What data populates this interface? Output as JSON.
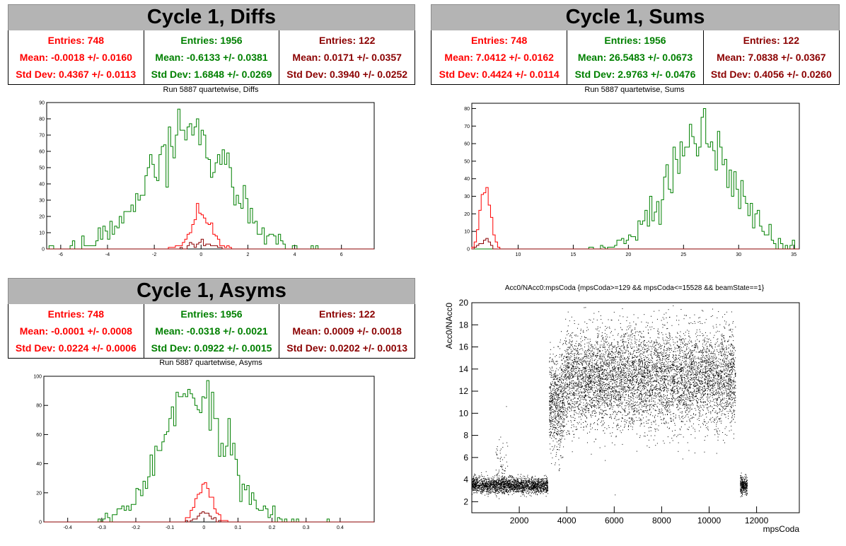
{
  "colors": {
    "s0": "#ff0000",
    "s1": "#008000",
    "s2": "#8b0000"
  },
  "panels": {
    "diffs": {
      "title": "Cycle 1, Diffs",
      "stats": [
        {
          "entries": "Entries: 748",
          "mean": "Mean: -0.0018 +/- 0.0160",
          "std": "Std Dev: 0.4367 +/- 0.0113"
        },
        {
          "entries": "Entries: 1956",
          "mean": "Mean: -0.6133 +/- 0.0381",
          "std": "Std Dev: 1.6848 +/- 0.0269"
        },
        {
          "entries": "Entries: 122",
          "mean": "Mean: 0.0171 +/- 0.0357",
          "std": "Std Dev: 0.3940 +/- 0.0252"
        }
      ],
      "run_title": "Run 5887 quartetwise, Diffs"
    },
    "sums": {
      "title": "Cycle 1, Sums",
      "stats": [
        {
          "entries": "Entries: 748",
          "mean": "Mean: 7.0412 +/- 0.0162",
          "std": "Std Dev: 0.4424 +/- 0.0114"
        },
        {
          "entries": "Entries: 1956",
          "mean": "Mean: 26.5483 +/- 0.0673",
          "std": "Std Dev: 2.9763 +/- 0.0476"
        },
        {
          "entries": "Entries: 122",
          "mean": "Mean: 7.0838 +/- 0.0367",
          "std": "Std Dev: 0.4056 +/- 0.0260"
        }
      ],
      "run_title": "Run 5887 quartetwise, Sums"
    },
    "asyms": {
      "title": "Cycle 1, Asyms",
      "stats": [
        {
          "entries": "Entries: 748",
          "mean": "Mean: -0.0001 +/- 0.0008",
          "std": "Std Dev: 0.0224 +/- 0.0006"
        },
        {
          "entries": "Entries: 1956",
          "mean": "Mean: -0.0318 +/- 0.0021",
          "std": "Std Dev: 0.0922 +/- 0.0015"
        },
        {
          "entries": "Entries: 122",
          "mean": "Mean: 0.0009 +/- 0.0018",
          "std": "Std Dev: 0.0202 +/- 0.0013"
        }
      ],
      "run_title": "Run 5887 quartetwise, Asyms"
    },
    "scatter": {
      "title": "Acc0/NAcc0:mpsCoda {mpsCoda>=129 && mpsCoda<=15528 && beamState==1}"
    }
  },
  "chart_data": [
    {
      "type": "histogram",
      "name": "diffs",
      "title": "Run 5887 quartetwise, Diffs",
      "xlim": [
        -6.6,
        7.4
      ],
      "ylim": [
        0,
        90
      ],
      "xticks": [
        -6,
        -4,
        -2,
        0,
        2,
        4,
        6
      ],
      "yticks": [
        0,
        10,
        20,
        30,
        40,
        50,
        60,
        70,
        80,
        90
      ],
      "series": [
        {
          "entries": 1956,
          "mean": -0.6133,
          "std": 1.6848,
          "peak": 86,
          "color": "#008000"
        },
        {
          "entries": 748,
          "mean": -0.0018,
          "std": 0.4367,
          "peak": 28,
          "color": "#ff0000"
        },
        {
          "entries": 122,
          "mean": 0.0171,
          "std": 0.394,
          "peak": 6,
          "color": "#8b0000"
        }
      ]
    },
    {
      "type": "histogram",
      "name": "sums",
      "title": "Run 5887 quartetwise, Sums",
      "xlim": [
        5.8,
        35.5
      ],
      "ylim": [
        0,
        83
      ],
      "xticks": [
        10,
        15,
        20,
        25,
        30,
        35
      ],
      "yticks": [
        0,
        10,
        20,
        30,
        40,
        50,
        60,
        70,
        80
      ],
      "series": [
        {
          "entries": 1956,
          "mean": 26.5483,
          "std": 2.9763,
          "peak": 80,
          "color": "#008000"
        },
        {
          "entries": 748,
          "mean": 7.0412,
          "std": 0.4424,
          "peak": 35,
          "color": "#ff0000"
        },
        {
          "entries": 122,
          "mean": 7.0838,
          "std": 0.4056,
          "peak": 6,
          "color": "#8b0000"
        }
      ]
    },
    {
      "type": "histogram",
      "name": "asyms",
      "title": "Run 5887 quartetwise, Asyms",
      "xlim": [
        -0.47,
        0.5
      ],
      "ylim": [
        0,
        100
      ],
      "xticks": [
        -0.4,
        -0.3,
        -0.2,
        -0.1,
        0,
        0.1,
        0.2,
        0.3,
        0.4
      ],
      "yticks": [
        0,
        20,
        40,
        60,
        80,
        100
      ],
      "series": [
        {
          "entries": 1956,
          "mean": -0.0318,
          "std": 0.0922,
          "peak": 97,
          "color": "#008000"
        },
        {
          "entries": 748,
          "mean": -0.0001,
          "std": 0.0224,
          "peak": 27,
          "color": "#ff0000"
        },
        {
          "entries": 122,
          "mean": 0.0009,
          "std": 0.0202,
          "peak": 7,
          "color": "#8b0000"
        }
      ]
    },
    {
      "type": "scatter",
      "name": "scatter",
      "title": "Acc0/NAcc0:mpsCoda {mpsCoda>=129 && mpsCoda<=15528 && beamState==1}",
      "xlabel": "mpsCoda",
      "ylabel": "Acc0/NAcc0",
      "xlim": [
        0,
        13800
      ],
      "ylim": [
        1,
        20
      ],
      "xticks": [
        2000,
        4000,
        6000,
        8000,
        10000,
        12000
      ],
      "yticks": [
        2,
        4,
        6,
        8,
        10,
        12,
        14,
        16,
        18,
        20
      ],
      "regions": [
        {
          "x": [
            0,
            3200
          ],
          "ymean": 3.5,
          "ystd": 0.35,
          "n": 2200
        },
        {
          "x": [
            1000,
            1500
          ],
          "ymean": 5.5,
          "ystd": 1.2,
          "n": 60
        },
        {
          "x": [
            3250,
            3900
          ],
          "ymean": 11,
          "ystd": 2.2,
          "n": 700
        },
        {
          "x": [
            3900,
            11100
          ],
          "ymean": 13.2,
          "ystd": 2.2,
          "n": 6500
        },
        {
          "x": [
            11300,
            11600
          ],
          "ymean": 3.5,
          "ystd": 0.4,
          "n": 300
        }
      ]
    }
  ]
}
